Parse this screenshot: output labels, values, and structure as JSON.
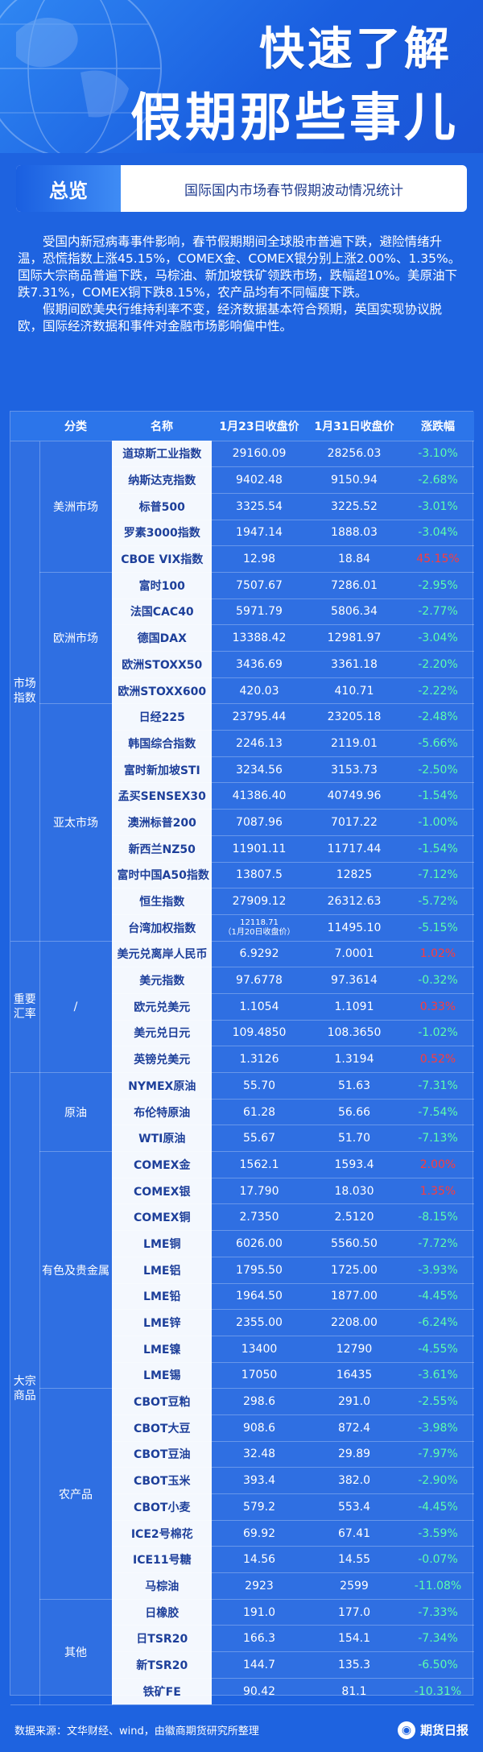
{
  "header": {
    "title1": "快速了解",
    "title2": "假期那些事儿"
  },
  "overview": {
    "tag": "总览",
    "subtitle": "国际国内市场春节假期波动情况统计"
  },
  "intro": {
    "p1": "受国内新冠病毒事件影响，春节假期期间全球股市普遍下跌，避险情绪升温，恐慌指数上涨45.15%，COMEX金、COMEX银分别上涨2.00%、1.35%。国际大宗商品普遍下跌，马棕油、新加坡铁矿领跌市场，跌幅超10%。美原油下跌7.31%，COMEX铜下跌8.15%，农产品均有不同幅度下跌。",
    "p2": "假期间欧美央行维持利率不变，经济数据基本符合预期，英国实现协议脱欧，国际经济数据和事件对金融市场影响偏中性。"
  },
  "table": {
    "headers": [
      "分类",
      "名称",
      "1月23日收盘价",
      "1月31日收盘价",
      "涨跌幅"
    ],
    "groups": [
      {
        "l1": "市场指数",
        "subgroups": [
          {
            "l2": "美洲市场",
            "rows": [
              [
                "道琼斯工业指数",
                "29160.09",
                "28256.03",
                "-3.10%",
                "down"
              ],
              [
                "纳斯达克指数",
                "9402.48",
                "9150.94",
                "-2.68%",
                "down"
              ],
              [
                "标普500",
                "3325.54",
                "3225.52",
                "-3.01%",
                "down"
              ],
              [
                "罗素3000指数",
                "1947.14",
                "1888.03",
                "-3.04%",
                "down"
              ],
              [
                "CBOE VIX指数",
                "12.98",
                "18.84",
                "45.15%",
                "up"
              ]
            ]
          },
          {
            "l2": "欧洲市场",
            "rows": [
              [
                "富时100",
                "7507.67",
                "7286.01",
                "-2.95%",
                "down"
              ],
              [
                "法国CAC40",
                "5971.79",
                "5806.34",
                "-2.77%",
                "down"
              ],
              [
                "德国DAX",
                "13388.42",
                "12981.97",
                "-3.04%",
                "down"
              ],
              [
                "欧洲STOXX50",
                "3436.69",
                "3361.18",
                "-2.20%",
                "down"
              ],
              [
                "欧洲STOXX600",
                "420.03",
                "410.71",
                "-2.22%",
                "down"
              ]
            ]
          },
          {
            "l2": "亚太市场",
            "rows": [
              [
                "日经225",
                "23795.44",
                "23205.18",
                "-2.48%",
                "down"
              ],
              [
                "韩国综合指数",
                "2246.13",
                "2119.01",
                "-5.66%",
                "down"
              ],
              [
                "富时新加坡STI",
                "3234.56",
                "3153.73",
                "-2.50%",
                "down"
              ],
              [
                "孟买SENSEX30",
                "41386.40",
                "40749.96",
                "-1.54%",
                "down"
              ],
              [
                "澳洲标普200",
                "7087.96",
                "7017.22",
                "-1.00%",
                "down"
              ],
              [
                "新西兰NZ50",
                "11901.11",
                "11717.44",
                "-1.54%",
                "down"
              ],
              [
                "富时中国A50指数",
                "13807.5",
                "12825",
                "-7.12%",
                "down"
              ],
              [
                "恒生指数",
                "27909.12",
                "26312.63",
                "-5.72%",
                "down"
              ],
              [
                "台湾加权指数",
                "12118.71",
                "11495.10",
                "-5.15%",
                "down"
              ]
            ]
          }
        ]
      },
      {
        "l1": "重要汇率",
        "subgroups": [
          {
            "l2": "/",
            "rows": [
              [
                "美元兑离岸人民币",
                "6.9292",
                "7.0001",
                "1.02%",
                "up"
              ],
              [
                "美元指数",
                "97.6778",
                "97.3614",
                "-0.32%",
                "down"
              ],
              [
                "欧元兑美元",
                "1.1054",
                "1.1091",
                "0.33%",
                "up"
              ],
              [
                "美元兑日元",
                "109.4850",
                "108.3650",
                "-1.02%",
                "down"
              ],
              [
                "英镑兑美元",
                "1.3126",
                "1.3194",
                "0.52%",
                "up"
              ]
            ]
          }
        ]
      },
      {
        "l1": "大宗商品",
        "subgroups": [
          {
            "l2": "原油",
            "rows": [
              [
                "NYMEX原油",
                "55.70",
                "51.63",
                "-7.31%",
                "down"
              ],
              [
                "布伦特原油",
                "61.28",
                "56.66",
                "-7.54%",
                "down"
              ],
              [
                "WTI原油",
                "55.67",
                "51.70",
                "-7.13%",
                "down"
              ]
            ]
          },
          {
            "l2": "有色及贵金属",
            "rows": [
              [
                "COMEX金",
                "1562.1",
                "1593.4",
                "2.00%",
                "up"
              ],
              [
                "COMEX银",
                "17.790",
                "18.030",
                "1.35%",
                "up"
              ],
              [
                "COMEX铜",
                "2.7350",
                "2.5120",
                "-8.15%",
                "down"
              ],
              [
                "LME铜",
                "6026.00",
                "5560.50",
                "-7.72%",
                "down"
              ],
              [
                "LME铝",
                "1795.50",
                "1725.00",
                "-3.93%",
                "down"
              ],
              [
                "LME铅",
                "1964.50",
                "1877.00",
                "-4.45%",
                "down"
              ],
              [
                "LME锌",
                "2355.00",
                "2208.00",
                "-6.24%",
                "down"
              ],
              [
                "LME镍",
                "13400",
                "12790",
                "-4.55%",
                "down"
              ],
              [
                "LME锡",
                "17050",
                "16435",
                "-3.61%",
                "down"
              ]
            ]
          },
          {
            "l2": "农产品",
            "rows": [
              [
                "CBOT豆粕",
                "298.6",
                "291.0",
                "-2.55%",
                "down"
              ],
              [
                "CBOT大豆",
                "908.6",
                "872.4",
                "-3.98%",
                "down"
              ],
              [
                "CBOT豆油",
                "32.48",
                "29.89",
                "-7.97%",
                "down"
              ],
              [
                "CBOT玉米",
                "393.4",
                "382.0",
                "-2.90%",
                "down"
              ],
              [
                "CBOT小麦",
                "579.2",
                "553.4",
                "-4.45%",
                "down"
              ],
              [
                "ICE2号棉花",
                "69.92",
                "67.41",
                "-3.59%",
                "down"
              ],
              [
                "ICE11号糖",
                "14.56",
                "14.55",
                "-0.07%",
                "down"
              ],
              [
                "马棕油",
                "2923",
                "2599",
                "-11.08%",
                "down"
              ]
            ]
          },
          {
            "l2": "其他",
            "rows": [
              [
                "日橡胶",
                "191.0",
                "177.0",
                "-7.33%",
                "down"
              ],
              [
                "日TSR20",
                "166.3",
                "154.1",
                "-7.34%",
                "down"
              ],
              [
                "新TSR20",
                "144.7",
                "135.3",
                "-6.50%",
                "down"
              ],
              [
                "铁矿FE",
                "90.42",
                "81.1",
                "-10.31%",
                "down"
              ]
            ]
          }
        ]
      }
    ],
    "taiwan_note": "（1月20日收盘价）"
  },
  "footer": {
    "source": "数据来源：文华财经、wind，由徽商期货研究所整理",
    "brand": "期货日报"
  }
}
